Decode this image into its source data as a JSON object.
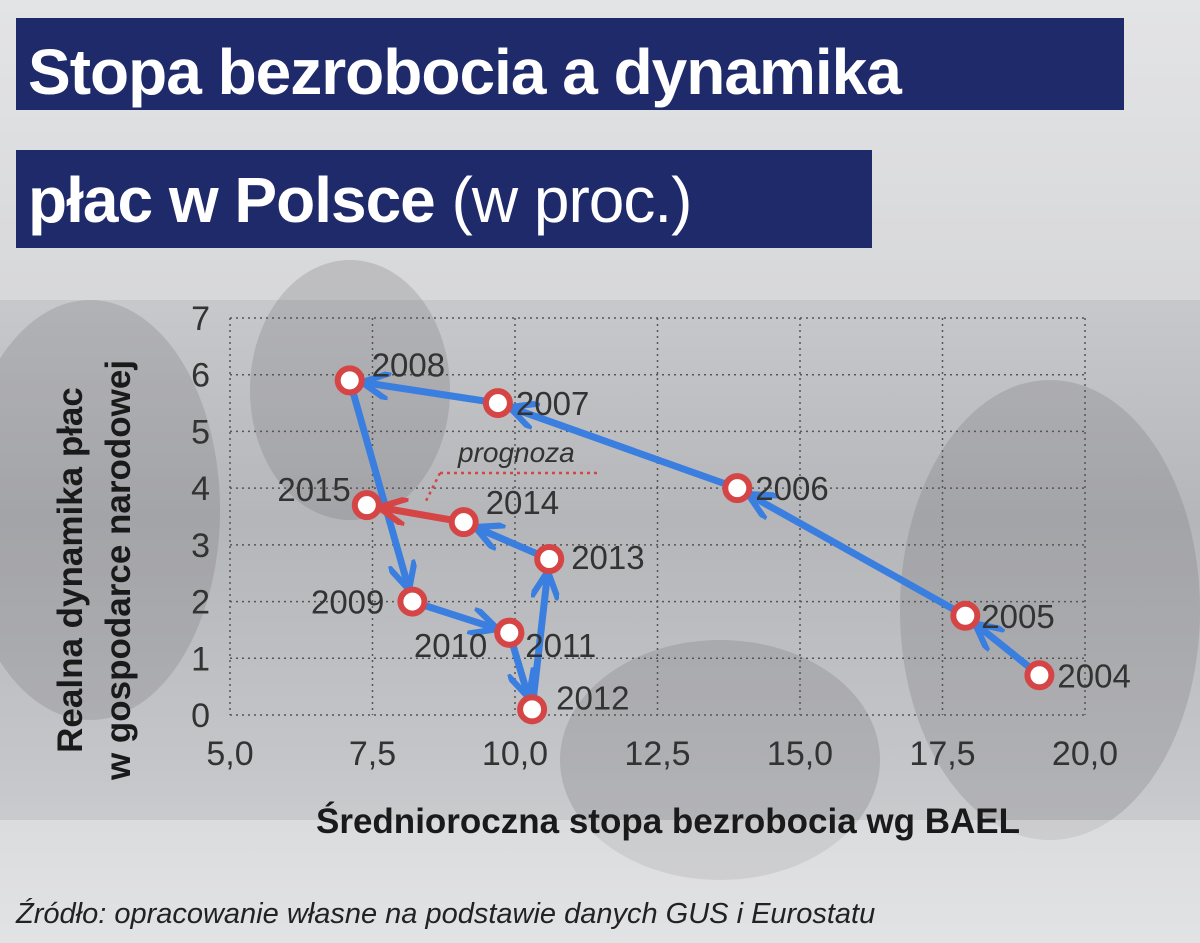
{
  "title": {
    "line1": "Stopa bezrobocia a dynamika",
    "line2_main": "płac w Polsce",
    "line2_unit": "(w proc.)"
  },
  "source": "Źródło: opracowanie własne na podstawie danych GUS i Eurostatu",
  "chart_data": {
    "type": "scatter",
    "title": "Stopa bezrobocia a dynamika płac w Polsce (w proc.)",
    "xlabel": "Średnioroczna stopa bezrobocia wg BAEL",
    "ylabel_line1": "Realna dynamika płac",
    "ylabel_line2": "w gospodarce narodowej",
    "xlim": [
      5.0,
      20.0
    ],
    "ylim": [
      0,
      7
    ],
    "x_ticks": [
      "5,0",
      "7,5",
      "10,0",
      "12,5",
      "15,0",
      "17,5",
      "20,0"
    ],
    "y_ticks": [
      "0",
      "1",
      "2",
      "3",
      "4",
      "5",
      "6",
      "7"
    ],
    "grid": "dotted",
    "forecast_label": "prognoza",
    "colors": {
      "arrow": "#3a7fe0",
      "forecast_arrow": "#d64545",
      "marker": "#d64545"
    },
    "points": [
      {
        "label": "2004",
        "x": 19.2,
        "y": 0.7
      },
      {
        "label": "2005",
        "x": 17.9,
        "y": 1.75
      },
      {
        "label": "2006",
        "x": 13.9,
        "y": 4.0
      },
      {
        "label": "2007",
        "x": 9.7,
        "y": 5.5
      },
      {
        "label": "2008",
        "x": 7.1,
        "y": 5.9
      },
      {
        "label": "2009",
        "x": 8.2,
        "y": 2.0
      },
      {
        "label": "2010",
        "x": 9.9,
        "y": 1.45
      },
      {
        "label": "2011",
        "x": 9.9,
        "y": 1.45
      },
      {
        "label": "2012",
        "x": 10.3,
        "y": 0.1
      },
      {
        "label": "2013",
        "x": 10.6,
        "y": 2.75
      },
      {
        "label": "2014",
        "x": 9.1,
        "y": 3.4
      },
      {
        "label": "2015",
        "x": 7.4,
        "y": 3.7
      }
    ]
  }
}
